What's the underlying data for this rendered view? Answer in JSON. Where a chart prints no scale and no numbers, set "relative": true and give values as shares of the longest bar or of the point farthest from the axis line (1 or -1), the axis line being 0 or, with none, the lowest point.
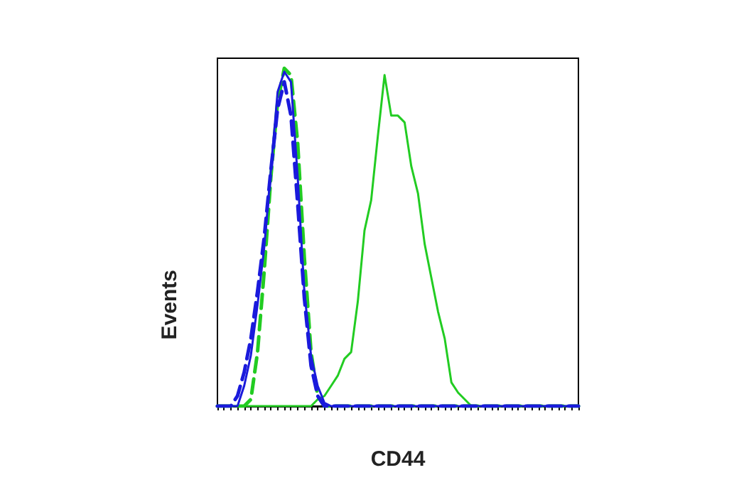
{
  "chart_data": {
    "type": "line",
    "xlabel": "CD44",
    "ylabel": "Events",
    "relative": true,
    "grid": false,
    "marker": "none",
    "categories": [
      null,
      null,
      null,
      null,
      null,
      null,
      null,
      null,
      null,
      null,
      null,
      null,
      null,
      null,
      null,
      null,
      null,
      null,
      null,
      null,
      null,
      null,
      null,
      null,
      null,
      null,
      null,
      null,
      null,
      null,
      null,
      null,
      null,
      null,
      null,
      null,
      null,
      null,
      null,
      null,
      null,
      null,
      null,
      null,
      null,
      null,
      null,
      null,
      null,
      null,
      null,
      null,
      null,
      null,
      null
    ],
    "series": [
      {
        "color": "#22cc22",
        "line_style": "dashed",
        "values": [
          0,
          0,
          0,
          0,
          0,
          0.02,
          0.16,
          0.4,
          0.68,
          0.9,
          1.0,
          0.98,
          0.78,
          0.44,
          0.16,
          0.03,
          0,
          0,
          0,
          0,
          0,
          0,
          0,
          0,
          0,
          0,
          0,
          0,
          0,
          0,
          0,
          0,
          0,
          0,
          0,
          0,
          0,
          0,
          0,
          0,
          0,
          0,
          0,
          0,
          0,
          0,
          0,
          0,
          0,
          0,
          0,
          0,
          0,
          0,
          0
        ]
      },
      {
        "color": "#22cc22",
        "line_style": "solid",
        "values": [
          0,
          0,
          0,
          0,
          0,
          0,
          0,
          0,
          0,
          0,
          0,
          0,
          0,
          0,
          0,
          0.02,
          0.03,
          0.06,
          0.09,
          0.14,
          0.16,
          0.31,
          0.52,
          0.61,
          0.8,
          0.98,
          0.86,
          0.86,
          0.84,
          0.71,
          0.63,
          0.48,
          0.38,
          0.28,
          0.2,
          0.07,
          0.04,
          0.02,
          0,
          0,
          0,
          0,
          0,
          0,
          0,
          0,
          0,
          0,
          0,
          0,
          0,
          0,
          0,
          0,
          0
        ]
      },
      {
        "color": "#1a1adc",
        "line_style": "solid",
        "values": [
          0,
          0,
          0,
          0,
          0.06,
          0.15,
          0.3,
          0.47,
          0.7,
          0.93,
          0.99,
          0.96,
          0.68,
          0.34,
          0.15,
          0.06,
          0.01,
          0,
          0,
          0,
          0,
          0,
          0,
          0,
          0,
          0,
          0,
          0,
          0,
          0,
          0,
          0,
          0,
          0,
          0,
          0,
          0,
          0,
          0,
          0,
          0,
          0,
          0,
          0,
          0,
          0,
          0,
          0,
          0,
          0,
          0,
          0,
          0,
          0,
          0
        ]
      },
      {
        "color": "#1a1adc",
        "line_style": "dashed",
        "values": [
          0,
          0,
          0,
          0.03,
          0.1,
          0.2,
          0.34,
          0.5,
          0.7,
          0.88,
          0.96,
          0.86,
          0.6,
          0.32,
          0.12,
          0.03,
          0,
          0,
          0,
          0,
          0,
          0,
          0,
          0,
          0,
          0,
          0,
          0,
          0,
          0,
          0,
          0,
          0,
          0,
          0,
          0,
          0,
          0,
          0,
          0,
          0,
          0,
          0,
          0,
          0,
          0,
          0,
          0,
          0,
          0,
          0,
          0,
          0,
          0,
          0
        ]
      }
    ]
  }
}
